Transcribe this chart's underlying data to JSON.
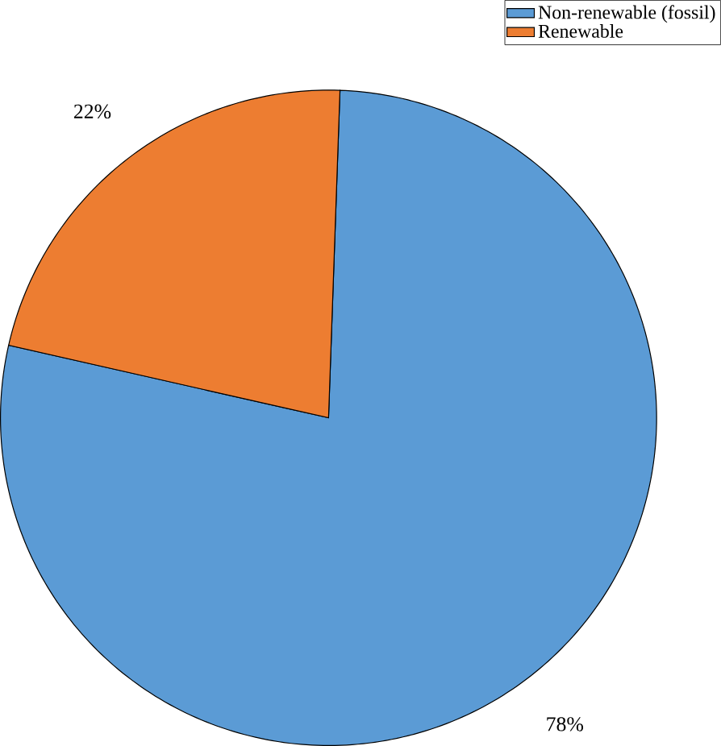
{
  "chart_data": {
    "type": "pie",
    "categories": [
      "Non-renewable (fossil)",
      "Renewable"
    ],
    "values": [
      78,
      22
    ],
    "colors": [
      "#5b9bd5",
      "#ed7d31"
    ],
    "value_labels": [
      "78%",
      "22%"
    ],
    "legend": "top right"
  }
}
